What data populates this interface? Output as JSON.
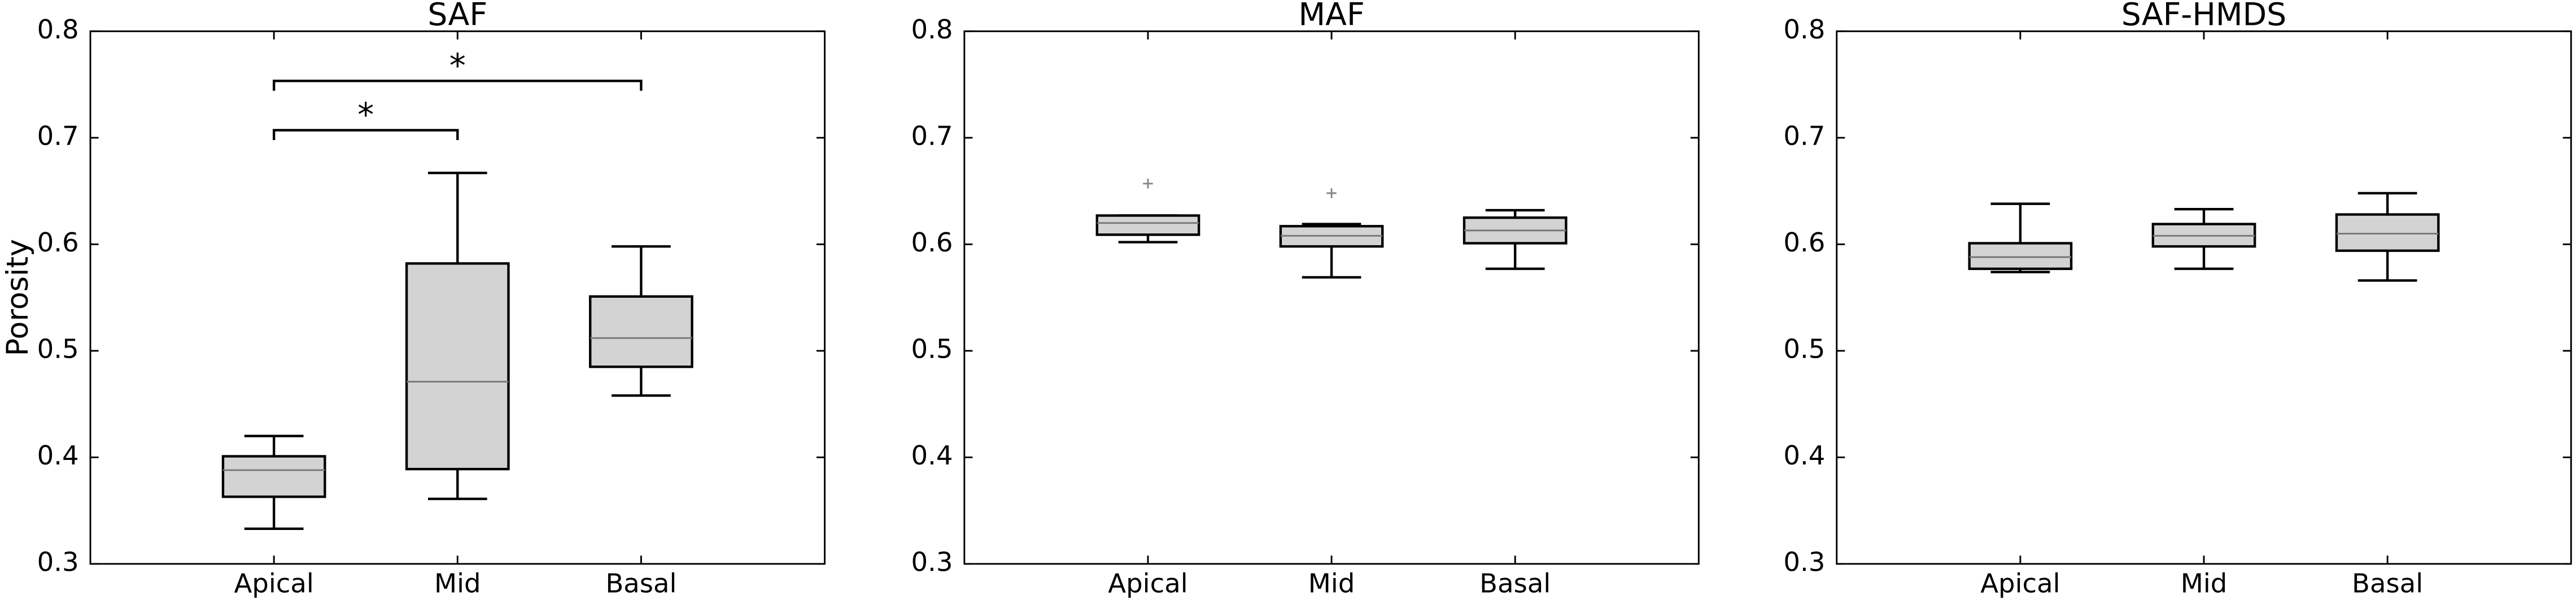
{
  "chart_data": [
    {
      "type": "box",
      "title": "SAF",
      "ylabel": "Porosity",
      "categories": [
        "Apical",
        "Mid",
        "Basal"
      ],
      "boxes": [
        {
          "whislo": 0.333,
          "q1": 0.363,
          "med": 0.388,
          "q3": 0.401,
          "whishi": 0.42,
          "fliers": []
        },
        {
          "whislo": 0.361,
          "q1": 0.389,
          "med": 0.471,
          "q3": 0.582,
          "whishi": 0.667,
          "fliers": []
        },
        {
          "whislo": 0.458,
          "q1": 0.485,
          "med": 0.512,
          "q3": 0.551,
          "whishi": 0.598,
          "fliers": []
        }
      ],
      "significance": [
        {
          "label": "*",
          "from": 0,
          "to": 1
        },
        {
          "label": "*",
          "from": 0,
          "to": 2
        }
      ],
      "ylim": [
        0.3,
        0.8
      ],
      "yticks": [
        0.3,
        0.4,
        0.5,
        0.6,
        0.7,
        0.8
      ],
      "color": "#d3d3d3"
    },
    {
      "type": "box",
      "title": "MAF",
      "categories": [
        "Apical",
        "Mid",
        "Basal"
      ],
      "boxes": [
        {
          "whislo": 0.602,
          "q1": 0.609,
          "med": 0.62,
          "q3": 0.627,
          "whishi": 0.627,
          "fliers": [
            0.657
          ]
        },
        {
          "whislo": 0.569,
          "q1": 0.598,
          "med": 0.608,
          "q3": 0.617,
          "whishi": 0.619,
          "fliers": [
            0.648
          ]
        },
        {
          "whislo": 0.577,
          "q1": 0.601,
          "med": 0.613,
          "q3": 0.625,
          "whishi": 0.632,
          "fliers": []
        }
      ],
      "ylim": [
        0.3,
        0.8
      ],
      "yticks": [
        0.3,
        0.4,
        0.5,
        0.6,
        0.7,
        0.8
      ],
      "color": "#d3d3d3"
    },
    {
      "type": "box",
      "title": "SAF-HMDS",
      "categories": [
        "Apical",
        "Mid",
        "Basal"
      ],
      "boxes": [
        {
          "whislo": 0.574,
          "q1": 0.577,
          "med": 0.588,
          "q3": 0.601,
          "whishi": 0.638,
          "fliers": []
        },
        {
          "whislo": 0.577,
          "q1": 0.598,
          "med": 0.608,
          "q3": 0.619,
          "whishi": 0.633,
          "fliers": []
        },
        {
          "whislo": 0.566,
          "q1": 0.594,
          "med": 0.61,
          "q3": 0.628,
          "whishi": 0.648,
          "fliers": []
        }
      ],
      "ylim": [
        0.3,
        0.8
      ],
      "yticks": [
        0.3,
        0.4,
        0.5,
        0.6,
        0.7,
        0.8
      ],
      "color": "#d3d3d3"
    }
  ]
}
